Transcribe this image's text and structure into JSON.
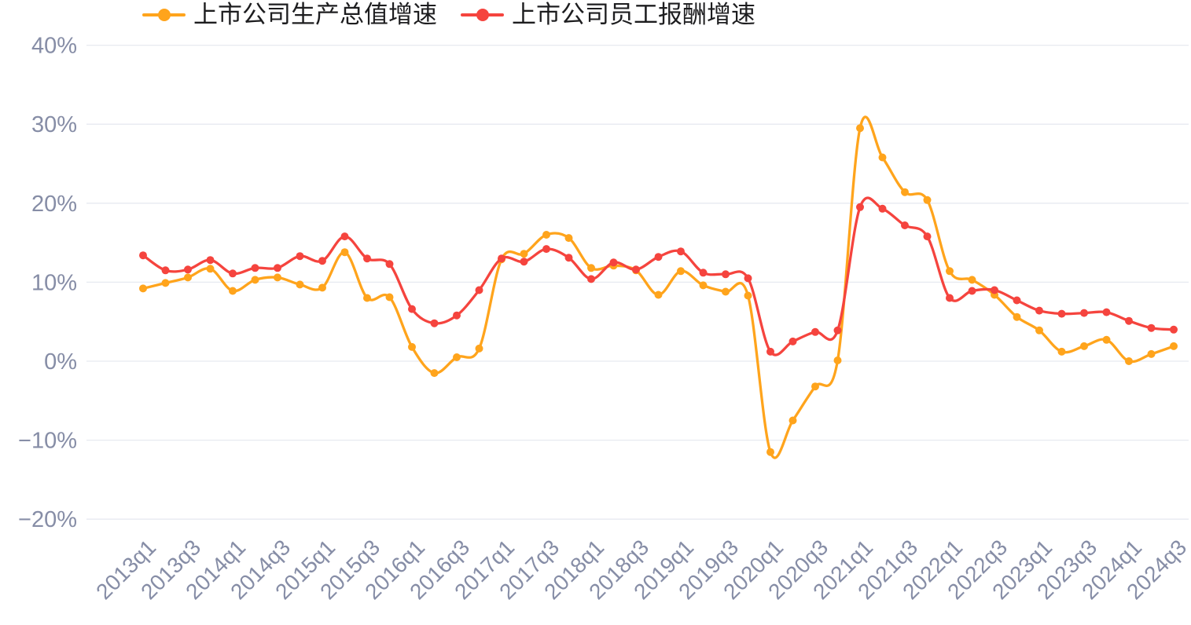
{
  "chart_data": {
    "type": "line",
    "smooth": true,
    "title": "",
    "legend_position": "top-left",
    "background": "#ffffff",
    "x_categories": [
      "2013q1",
      "2013q2",
      "2013q3",
      "2013q4",
      "2014q1",
      "2014q2",
      "2014q3",
      "2014q4",
      "2015q1",
      "2015q2",
      "2015q3",
      "2015q4",
      "2016q1",
      "2016q2",
      "2016q3",
      "2016q4",
      "2017q1",
      "2017q2",
      "2017q3",
      "2017q4",
      "2018q1",
      "2018q2",
      "2018q3",
      "2018q4",
      "2019q1",
      "2019q2",
      "2019q3",
      "2019q4",
      "2020q1",
      "2020q2",
      "2020q3",
      "2020q4",
      "2021q1",
      "2021q2",
      "2021q3",
      "2021q4",
      "2022q1",
      "2022q2",
      "2022q3",
      "2022q4",
      "2023q1",
      "2023q2",
      "2023q3",
      "2023q4",
      "2024q1",
      "2024q2",
      "2024q3"
    ],
    "x_axis_ticks_shown": [
      "2013q1",
      "2013q3",
      "2014q1",
      "2014q3",
      "2015q1",
      "2015q3",
      "2016q1",
      "2016q3",
      "2017q1",
      "2017q3",
      "2018q1",
      "2018q3",
      "2019q1",
      "2019q3",
      "2020q1",
      "2020q3",
      "2021q1",
      "2021q3",
      "2022q1",
      "2022q3",
      "2023q1",
      "2023q3",
      "2024q1",
      "2024q3"
    ],
    "y_axis": {
      "min": -20,
      "max": 40,
      "unit": "%",
      "tick_values": [
        40,
        30,
        20,
        10,
        0,
        -10,
        -20
      ],
      "tick_labels": [
        "40%",
        "30%",
        "20%",
        "10%",
        "0%",
        "−10%",
        "−20%"
      ],
      "grid": "horizontal"
    },
    "series": [
      {
        "name": "上市公司生产总值增速",
        "color": "#ffa41c",
        "marker": "circle",
        "values": [
          9.2,
          9.9,
          10.6,
          11.7,
          8.9,
          10.3,
          10.6,
          9.7,
          9.3,
          13.8,
          8.0,
          8.1,
          1.8,
          -1.5,
          0.5,
          1.6,
          12.9,
          13.6,
          16.0,
          15.6,
          11.8,
          12.1,
          11.5,
          8.4,
          11.4,
          9.6,
          8.8,
          8.3,
          -11.5,
          -7.5,
          -3.2,
          0.1,
          29.5,
          25.8,
          21.4,
          20.4,
          11.4,
          10.3,
          8.4,
          5.6,
          3.9,
          1.2,
          1.9,
          2.7,
          0.0,
          0.9,
          1.9
        ]
      },
      {
        "name": "上市公司员工报酬增速",
        "color": "#f5443e",
        "marker": "circle",
        "values": [
          13.4,
          11.5,
          11.6,
          12.8,
          11.1,
          11.8,
          11.8,
          13.3,
          12.7,
          15.8,
          13.0,
          12.3,
          6.6,
          4.8,
          5.8,
          9.0,
          13.0,
          12.6,
          14.2,
          13.1,
          10.4,
          12.5,
          11.6,
          13.2,
          13.9,
          11.2,
          11.0,
          10.5,
          1.2,
          2.5,
          3.7,
          3.9,
          19.5,
          19.3,
          17.2,
          15.8,
          8.0,
          8.9,
          9.0,
          7.7,
          6.4,
          6.0,
          6.1,
          6.2,
          5.1,
          4.2,
          4.0
        ]
      }
    ]
  },
  "styles": {
    "axis_label_color": "#868da6",
    "grid_line_color": "#e7eaf0",
    "legend_text_color": "#1d1d1f"
  }
}
